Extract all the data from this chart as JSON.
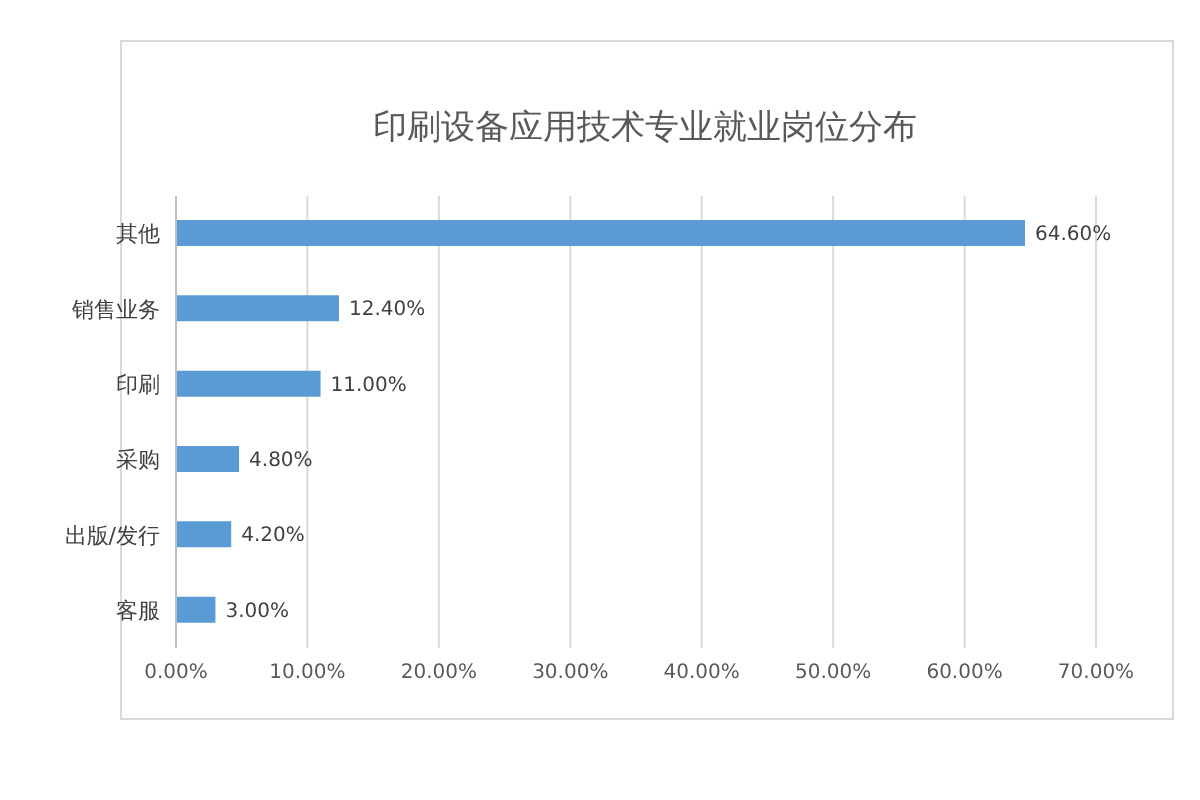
{
  "chart_data": {
    "type": "bar",
    "orientation": "horizontal",
    "title": "印刷设备应用技术专业就业岗位分布",
    "categories": [
      "其他",
      "销售业务",
      "印刷",
      "采购",
      "出版/发行",
      "客服"
    ],
    "values": [
      64.6,
      12.4,
      11.0,
      4.8,
      4.2,
      3.0
    ],
    "value_labels": [
      "64.60%",
      "12.40%",
      "11.00%",
      "4.80%",
      "4.20%",
      "3.00%"
    ],
    "color": "#5b9bd5",
    "xlim": [
      0,
      70
    ],
    "xticks": [
      {
        "value": 0,
        "label": "0.00%"
      },
      {
        "value": 10,
        "label": "10.00%"
      },
      {
        "value": 20,
        "label": "20.00%"
      },
      {
        "value": 30,
        "label": "30.00%"
      },
      {
        "value": 40,
        "label": "40.00%"
      },
      {
        "value": 50,
        "label": "50.00%"
      },
      {
        "value": 60,
        "label": "60.00%"
      },
      {
        "value": 70,
        "label": "70.00%"
      }
    ],
    "grid": "x",
    "legend": false
  }
}
